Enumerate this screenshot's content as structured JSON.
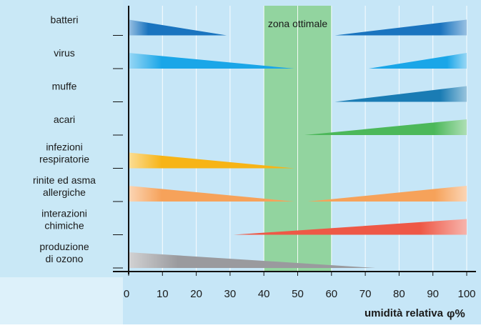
{
  "chart_data": {
    "type": "bar",
    "optimal_zone": {
      "label": "zona ottimale",
      "from": 40,
      "to": 60,
      "color": "#8fd39a"
    },
    "xlabel": "umidità relativa",
    "xlabel_symbol": "φ%",
    "xlim": [
      0,
      100
    ],
    "xticks": [
      0,
      10,
      20,
      30,
      40,
      50,
      60,
      70,
      80,
      90,
      100
    ],
    "grid": true,
    "categories": [
      {
        "label": [
          "batteri"
        ],
        "color": "#1a74bf",
        "bands": [
          {
            "from": 0,
            "to": 29,
            "dir": "decreasing"
          },
          {
            "from": 61,
            "to": 100,
            "dir": "increasing"
          }
        ]
      },
      {
        "label": [
          "virus"
        ],
        "color": "#1aa6e8",
        "bands": [
          {
            "from": 0,
            "to": 49,
            "dir": "decreasing"
          },
          {
            "from": 71,
            "to": 100,
            "dir": "increasing"
          }
        ]
      },
      {
        "label": [
          "muffe"
        ],
        "color": "#1a7cb4",
        "bands": [
          {
            "from": 61,
            "to": 100,
            "dir": "increasing"
          }
        ]
      },
      {
        "label": [
          "acari"
        ],
        "color": "#4cb85a",
        "bands": [
          {
            "from": 52,
            "to": 100,
            "dir": "increasing"
          }
        ]
      },
      {
        "label": [
          "infezioni",
          "respiratorie"
        ],
        "color": "#f7b416",
        "bands": [
          {
            "from": 0,
            "to": 49,
            "dir": "decreasing"
          }
        ]
      },
      {
        "label": [
          "rinite ed asma",
          "allergiche"
        ],
        "color": "#f6a25a",
        "bands": [
          {
            "from": 0,
            "to": 49,
            "dir": "decreasing"
          },
          {
            "from": 53,
            "to": 100,
            "dir": "increasing"
          }
        ]
      },
      {
        "label": [
          "interazioni",
          "chimiche"
        ],
        "color": "#ee5846",
        "bands": [
          {
            "from": 31,
            "to": 100,
            "dir": "increasing"
          }
        ]
      },
      {
        "label": [
          "produzione",
          "di ozono"
        ],
        "color": "#9a9a9e",
        "bands": [
          {
            "from": 0,
            "to": 73,
            "dir": "decreasing"
          }
        ]
      }
    ]
  }
}
